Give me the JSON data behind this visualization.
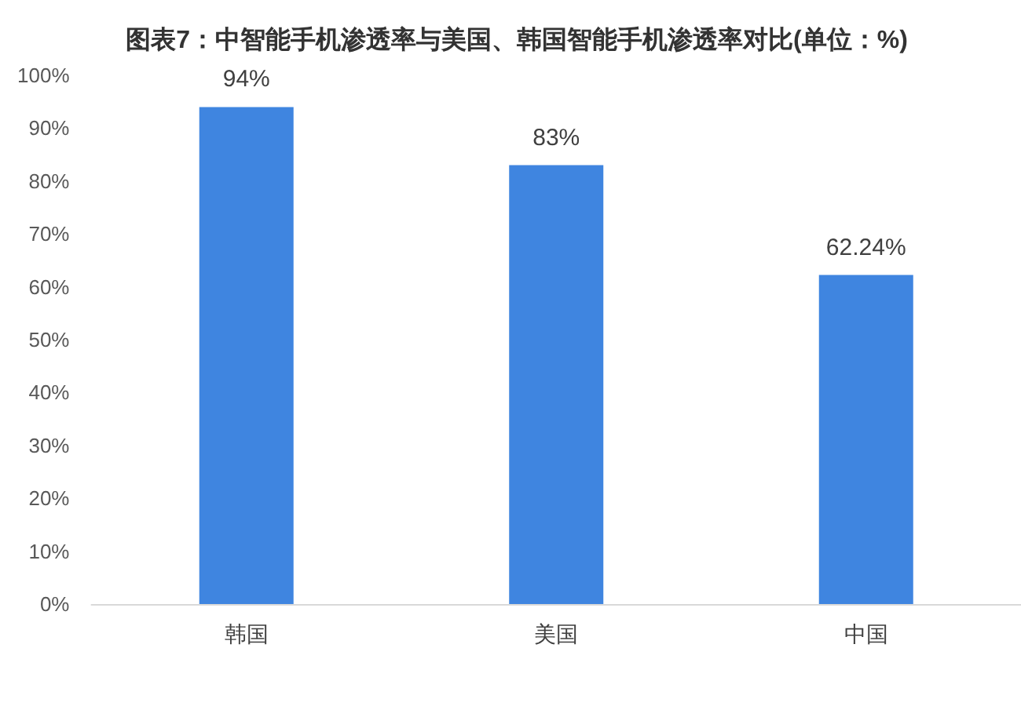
{
  "chart_data": {
    "type": "bar",
    "title": "图表7：中智能手机渗透率与美国、韩国智能手机渗透率对比(单位：%)",
    "categories": [
      "韩国",
      "美国",
      "中国"
    ],
    "values": [
      94,
      83,
      62.24
    ],
    "color": "#3f85e0",
    "value_labels": [
      "94%",
      "83%",
      "62.24%"
    ],
    "ylim": [
      0,
      100
    ],
    "yticks": [
      {
        "value": 0,
        "label": "0%"
      },
      {
        "value": 10,
        "label": "10%"
      },
      {
        "value": 20,
        "label": "20%"
      },
      {
        "value": 30,
        "label": "30%"
      },
      {
        "value": 40,
        "label": "40%"
      },
      {
        "value": 50,
        "label": "50%"
      },
      {
        "value": 60,
        "label": "60%"
      },
      {
        "value": 70,
        "label": "70%"
      },
      {
        "value": 80,
        "label": "80%"
      },
      {
        "value": 90,
        "label": "90%"
      },
      {
        "value": 100,
        "label": "100%"
      }
    ],
    "grid": false
  }
}
